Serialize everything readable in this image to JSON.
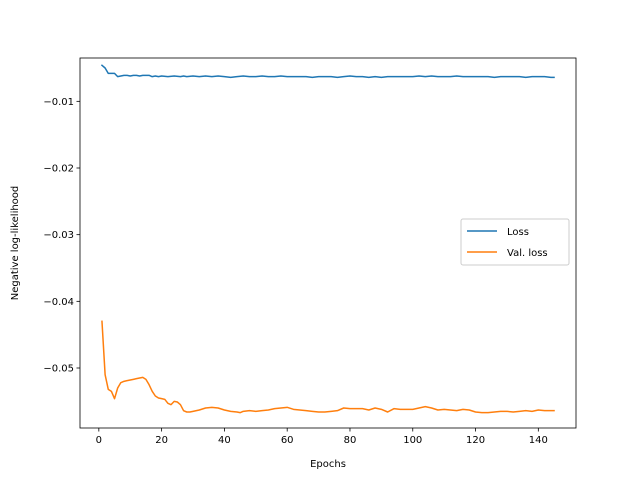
{
  "chart_data": {
    "type": "line",
    "title": "",
    "xlabel": "Epochs",
    "ylabel": "Negative log-likelihood",
    "xlim": [
      -6,
      152
    ],
    "ylim": [
      -0.059,
      -0.0035
    ],
    "xticks": [
      0,
      20,
      40,
      60,
      80,
      100,
      120,
      140
    ],
    "xtick_labels": [
      "0",
      "20",
      "40",
      "60",
      "80",
      "100",
      "120",
      "140"
    ],
    "yticks": [
      -0.01,
      -0.02,
      -0.03,
      -0.04,
      -0.05
    ],
    "ytick_labels": [
      "−0.01",
      "−0.02",
      "−0.03",
      "−0.04",
      "−0.05"
    ],
    "grid": false,
    "legend_position": "center-right",
    "series": [
      {
        "name": "Loss",
        "color": "#1f77b4",
        "points": [
          [
            1,
            -0.0046
          ],
          [
            2,
            -0.005
          ],
          [
            3,
            -0.0058
          ],
          [
            4,
            -0.0058
          ],
          [
            5,
            -0.0058
          ],
          [
            6,
            -0.0063
          ],
          [
            7,
            -0.0062
          ],
          [
            8,
            -0.0061
          ],
          [
            9,
            -0.0061
          ],
          [
            10,
            -0.0062
          ],
          [
            11,
            -0.0061
          ],
          [
            12,
            -0.0061
          ],
          [
            13,
            -0.0062
          ],
          [
            14,
            -0.0061
          ],
          [
            15,
            -0.0061
          ],
          [
            16,
            -0.0061
          ],
          [
            17,
            -0.0063
          ],
          [
            18,
            -0.0062
          ],
          [
            19,
            -0.0063
          ],
          [
            20,
            -0.0062
          ],
          [
            22,
            -0.0063
          ],
          [
            24,
            -0.0062
          ],
          [
            26,
            -0.0063
          ],
          [
            27,
            -0.0062
          ],
          [
            28,
            -0.0063
          ],
          [
            30,
            -0.0062
          ],
          [
            32,
            -0.0063
          ],
          [
            34,
            -0.0062
          ],
          [
            36,
            -0.0063
          ],
          [
            38,
            -0.0062
          ],
          [
            40,
            -0.0063
          ],
          [
            42,
            -0.0064
          ],
          [
            44,
            -0.0063
          ],
          [
            46,
            -0.0062
          ],
          [
            48,
            -0.0063
          ],
          [
            50,
            -0.0063
          ],
          [
            52,
            -0.0062
          ],
          [
            54,
            -0.0063
          ],
          [
            56,
            -0.0063
          ],
          [
            58,
            -0.0062
          ],
          [
            60,
            -0.0063
          ],
          [
            62,
            -0.0063
          ],
          [
            64,
            -0.0063
          ],
          [
            66,
            -0.0063
          ],
          [
            68,
            -0.0064
          ],
          [
            70,
            -0.0063
          ],
          [
            72,
            -0.0063
          ],
          [
            74,
            -0.0063
          ],
          [
            76,
            -0.0064
          ],
          [
            78,
            -0.0063
          ],
          [
            80,
            -0.0062
          ],
          [
            82,
            -0.0063
          ],
          [
            84,
            -0.0063
          ],
          [
            86,
            -0.0064
          ],
          [
            88,
            -0.0063
          ],
          [
            90,
            -0.0064
          ],
          [
            92,
            -0.0063
          ],
          [
            94,
            -0.0063
          ],
          [
            96,
            -0.0063
          ],
          [
            98,
            -0.0063
          ],
          [
            100,
            -0.0063
          ],
          [
            102,
            -0.0062
          ],
          [
            104,
            -0.0063
          ],
          [
            106,
            -0.0062
          ],
          [
            108,
            -0.0063
          ],
          [
            110,
            -0.0063
          ],
          [
            112,
            -0.0063
          ],
          [
            114,
            -0.0062
          ],
          [
            116,
            -0.0063
          ],
          [
            118,
            -0.0063
          ],
          [
            120,
            -0.0063
          ],
          [
            122,
            -0.0063
          ],
          [
            124,
            -0.0063
          ],
          [
            126,
            -0.0064
          ],
          [
            128,
            -0.0063
          ],
          [
            130,
            -0.0063
          ],
          [
            132,
            -0.0063
          ],
          [
            134,
            -0.0063
          ],
          [
            136,
            -0.0064
          ],
          [
            138,
            -0.0063
          ],
          [
            140,
            -0.0063
          ],
          [
            142,
            -0.0063
          ],
          [
            144,
            -0.0064
          ],
          [
            145,
            -0.0064
          ]
        ]
      },
      {
        "name": "Val. loss",
        "color": "#ff7f0e",
        "points": [
          [
            1,
            -0.043
          ],
          [
            2,
            -0.051
          ],
          [
            3,
            -0.0532
          ],
          [
            4,
            -0.0535
          ],
          [
            5,
            -0.0546
          ],
          [
            6,
            -0.053
          ],
          [
            7,
            -0.0522
          ],
          [
            8,
            -0.052
          ],
          [
            9,
            -0.0519
          ],
          [
            10,
            -0.0518
          ],
          [
            11,
            -0.0517
          ],
          [
            12,
            -0.0516
          ],
          [
            13,
            -0.0515
          ],
          [
            14,
            -0.0514
          ],
          [
            15,
            -0.0517
          ],
          [
            16,
            -0.0525
          ],
          [
            17,
            -0.0535
          ],
          [
            18,
            -0.0542
          ],
          [
            19,
            -0.0545
          ],
          [
            20,
            -0.0546
          ],
          [
            21,
            -0.0547
          ],
          [
            22,
            -0.0553
          ],
          [
            23,
            -0.0555
          ],
          [
            24,
            -0.055
          ],
          [
            25,
            -0.0551
          ],
          [
            26,
            -0.0555
          ],
          [
            27,
            -0.0564
          ],
          [
            28,
            -0.0566
          ],
          [
            29,
            -0.0566
          ],
          [
            30,
            -0.0565
          ],
          [
            32,
            -0.0563
          ],
          [
            34,
            -0.056
          ],
          [
            36,
            -0.0559
          ],
          [
            38,
            -0.056
          ],
          [
            40,
            -0.0563
          ],
          [
            42,
            -0.0565
          ],
          [
            44,
            -0.0566
          ],
          [
            45,
            -0.0567
          ],
          [
            46,
            -0.0565
          ],
          [
            48,
            -0.0564
          ],
          [
            50,
            -0.0565
          ],
          [
            52,
            -0.0564
          ],
          [
            54,
            -0.0563
          ],
          [
            56,
            -0.0561
          ],
          [
            58,
            -0.056
          ],
          [
            60,
            -0.0559
          ],
          [
            62,
            -0.0562
          ],
          [
            64,
            -0.0563
          ],
          [
            66,
            -0.0564
          ],
          [
            68,
            -0.0565
          ],
          [
            70,
            -0.0566
          ],
          [
            72,
            -0.0566
          ],
          [
            74,
            -0.0565
          ],
          [
            76,
            -0.0564
          ],
          [
            78,
            -0.056
          ],
          [
            80,
            -0.0561
          ],
          [
            82,
            -0.0561
          ],
          [
            84,
            -0.0561
          ],
          [
            86,
            -0.0563
          ],
          [
            88,
            -0.056
          ],
          [
            90,
            -0.0562
          ],
          [
            92,
            -0.0566
          ],
          [
            94,
            -0.0561
          ],
          [
            96,
            -0.0562
          ],
          [
            98,
            -0.0562
          ],
          [
            100,
            -0.0562
          ],
          [
            102,
            -0.056
          ],
          [
            104,
            -0.0558
          ],
          [
            106,
            -0.056
          ],
          [
            108,
            -0.0563
          ],
          [
            110,
            -0.0562
          ],
          [
            112,
            -0.0563
          ],
          [
            114,
            -0.0564
          ],
          [
            116,
            -0.0562
          ],
          [
            118,
            -0.0563
          ],
          [
            120,
            -0.0566
          ],
          [
            122,
            -0.0567
          ],
          [
            124,
            -0.0567
          ],
          [
            126,
            -0.0566
          ],
          [
            128,
            -0.0565
          ],
          [
            130,
            -0.0565
          ],
          [
            132,
            -0.0566
          ],
          [
            134,
            -0.0565
          ],
          [
            136,
            -0.0564
          ],
          [
            138,
            -0.0565
          ],
          [
            140,
            -0.0563
          ],
          [
            142,
            -0.0564
          ],
          [
            144,
            -0.0564
          ],
          [
            145,
            -0.0564
          ]
        ]
      }
    ]
  }
}
